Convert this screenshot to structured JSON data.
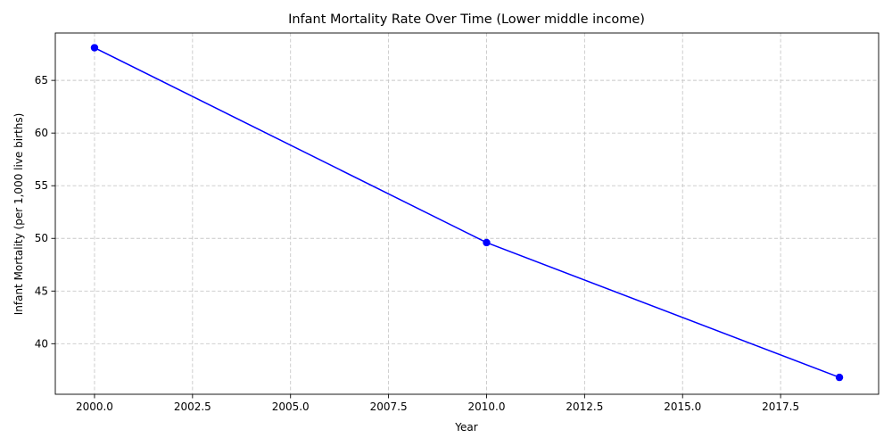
{
  "chart_data": {
    "type": "line",
    "title": "Infant Mortality Rate Over Time (Lower middle income)",
    "xlabel": "Year",
    "ylabel": "Infant Mortality (per 1,000 live births)",
    "xlim": [
      1999,
      2020
    ],
    "ylim": [
      35.2,
      69.5
    ],
    "xticks": [
      "2000.0",
      "2002.5",
      "2005.0",
      "2007.5",
      "2010.0",
      "2012.5",
      "2015.0",
      "2017.5"
    ],
    "yticks": [
      "40",
      "45",
      "50",
      "55",
      "60",
      "65"
    ],
    "grid": true,
    "series": [
      {
        "color": "#0000ff",
        "marker": "circle",
        "x": [
          2000,
          2010,
          2019
        ],
        "y": [
          68.1,
          49.6,
          36.8
        ]
      }
    ]
  }
}
